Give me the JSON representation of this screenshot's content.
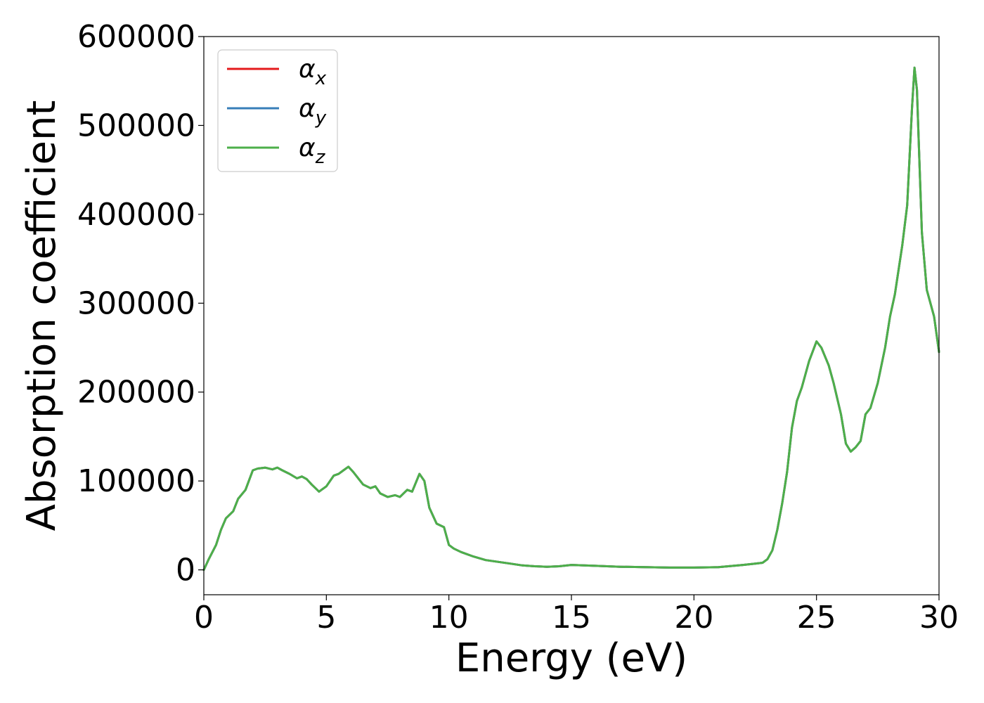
{
  "chart_data": {
    "type": "line",
    "title": "",
    "xlabel": "Energy (eV)",
    "ylabel": "Absorption coefficient",
    "xlim": [
      0,
      30
    ],
    "ylim": [
      -28000,
      600000
    ],
    "x_ticks": [
      0,
      5,
      10,
      15,
      20,
      25,
      30
    ],
    "y_ticks": [
      0,
      100000,
      200000,
      300000,
      400000,
      500000,
      600000
    ],
    "grid": false,
    "legend_position": "upper-left",
    "x": [
      0,
      0.2,
      0.5,
      0.7,
      0.9,
      1.2,
      1.4,
      1.7,
      2.0,
      2.2,
      2.5,
      2.8,
      3.0,
      3.2,
      3.5,
      3.8,
      4.0,
      4.2,
      4.4,
      4.7,
      5.0,
      5.3,
      5.5,
      5.7,
      5.9,
      6.1,
      6.3,
      6.5,
      6.8,
      7.0,
      7.2,
      7.5,
      7.8,
      8.0,
      8.3,
      8.5,
      8.8,
      9.0,
      9.2,
      9.5,
      9.8,
      10.0,
      10.2,
      10.5,
      11.0,
      11.5,
      12.0,
      12.5,
      13.0,
      13.5,
      14.0,
      14.5,
      15.0,
      15.5,
      16.0,
      17.0,
      18.0,
      19.0,
      20.0,
      21.0,
      22.0,
      22.5,
      22.8,
      23.0,
      23.2,
      23.4,
      23.6,
      23.8,
      24.0,
      24.2,
      24.4,
      24.7,
      25.0,
      25.2,
      25.5,
      25.7,
      26.0,
      26.2,
      26.4,
      26.6,
      26.8,
      27.0,
      27.2,
      27.5,
      27.8,
      28.0,
      28.2,
      28.5,
      28.7,
      28.9,
      29.0,
      29.1,
      29.3,
      29.5,
      29.8,
      30.0
    ],
    "series": [
      {
        "name": "αx",
        "label_base": "α",
        "label_sub": "x",
        "color": "#e41a1c",
        "values": [
          0,
          12000,
          28000,
          45000,
          58000,
          66000,
          80000,
          90000,
          112000,
          114000,
          115000,
          113000,
          115000,
          112000,
          108000,
          103000,
          105000,
          102000,
          96000,
          88000,
          94000,
          106000,
          108000,
          112000,
          116000,
          110000,
          103000,
          96000,
          92000,
          94000,
          86000,
          82000,
          84000,
          82000,
          90000,
          88000,
          108000,
          100000,
          70000,
          52000,
          48000,
          28000,
          24000,
          20000,
          15000,
          11000,
          9000,
          7000,
          5000,
          4000,
          3500,
          4000,
          5500,
          5000,
          4500,
          3500,
          3000,
          2500,
          2500,
          3000,
          5500,
          7000,
          8000,
          12000,
          22000,
          45000,
          75000,
          110000,
          160000,
          190000,
          205000,
          235000,
          257000,
          250000,
          230000,
          210000,
          175000,
          142000,
          133000,
          138000,
          145000,
          175000,
          182000,
          210000,
          250000,
          285000,
          310000,
          365000,
          410000,
          520000,
          565000,
          540000,
          380000,
          315000,
          285000,
          245000
        ]
      },
      {
        "name": "αy",
        "label_base": "α",
        "label_sub": "y",
        "color": "#377eb8",
        "values": [
          0,
          12000,
          28000,
          45000,
          58000,
          66000,
          80000,
          90000,
          112000,
          114000,
          115000,
          113000,
          115000,
          112000,
          108000,
          103000,
          105000,
          102000,
          96000,
          88000,
          94000,
          106000,
          108000,
          112000,
          116000,
          110000,
          103000,
          96000,
          92000,
          94000,
          86000,
          82000,
          84000,
          82000,
          90000,
          88000,
          108000,
          100000,
          70000,
          52000,
          48000,
          28000,
          24000,
          20000,
          15000,
          11000,
          9000,
          7000,
          5000,
          4000,
          3500,
          4000,
          5500,
          5000,
          4500,
          3500,
          3000,
          2500,
          2500,
          3000,
          5500,
          7000,
          8000,
          12000,
          22000,
          45000,
          75000,
          110000,
          160000,
          190000,
          205000,
          235000,
          257000,
          250000,
          230000,
          210000,
          175000,
          142000,
          133000,
          138000,
          145000,
          175000,
          182000,
          210000,
          250000,
          285000,
          310000,
          365000,
          410000,
          520000,
          565000,
          540000,
          380000,
          315000,
          285000,
          245000
        ]
      },
      {
        "name": "αz",
        "label_base": "α",
        "label_sub": "z",
        "color": "#4daf4a",
        "values": [
          0,
          12000,
          28000,
          45000,
          58000,
          66000,
          80000,
          90000,
          112000,
          114000,
          115000,
          113000,
          115000,
          112000,
          108000,
          103000,
          105000,
          102000,
          96000,
          88000,
          94000,
          106000,
          108000,
          112000,
          116000,
          110000,
          103000,
          96000,
          92000,
          94000,
          86000,
          82000,
          84000,
          82000,
          90000,
          88000,
          108000,
          100000,
          70000,
          52000,
          48000,
          28000,
          24000,
          20000,
          15000,
          11000,
          9000,
          7000,
          5000,
          4000,
          3500,
          4000,
          5500,
          5000,
          4500,
          3500,
          3000,
          2500,
          2500,
          3000,
          5500,
          7000,
          8000,
          12000,
          22000,
          45000,
          75000,
          110000,
          160000,
          190000,
          205000,
          235000,
          257000,
          250000,
          230000,
          210000,
          175000,
          142000,
          133000,
          138000,
          145000,
          175000,
          182000,
          210000,
          250000,
          285000,
          310000,
          365000,
          410000,
          520000,
          565000,
          540000,
          380000,
          315000,
          285000,
          245000
        ]
      }
    ]
  }
}
